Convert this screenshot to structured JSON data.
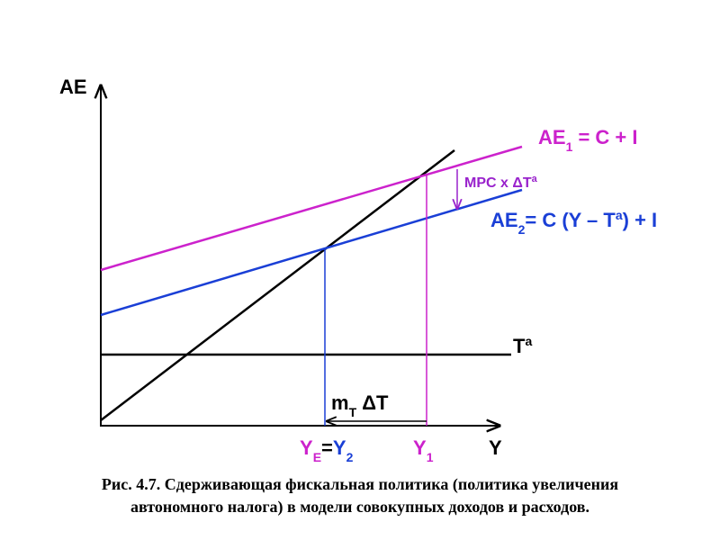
{
  "axis_labels": {
    "vertical": "AE",
    "horizontal": "Y"
  },
  "curves": {
    "ae1": {
      "name": "AE",
      "sub": "1",
      "formula": " = C + I"
    },
    "ae2": {
      "name": "AE",
      "sub": "2",
      "formula_start": "= C (Y – T",
      "sup": "a",
      "formula_end": ") + I"
    },
    "tax": {
      "name": "T",
      "sup": "a"
    }
  },
  "annotations": {
    "mpc": {
      "text": "MPC x ΔT",
      "sup": "a"
    },
    "multiplier": {
      "name": "m",
      "sub": "T",
      "rest": " ΔT"
    }
  },
  "x_labels": {
    "equilibrium": {
      "name": "Y",
      "sub": "E",
      "eq": "=",
      "name2": "Y",
      "sub2": "2"
    },
    "initial": {
      "name": "Y",
      "sub": "1"
    }
  },
  "caption": [
    "Рис. 4.7. Сдерживающая  фискальная политика (политика увеличения",
    "автономного налога) в модели совокупных доходов и расходов."
  ]
}
